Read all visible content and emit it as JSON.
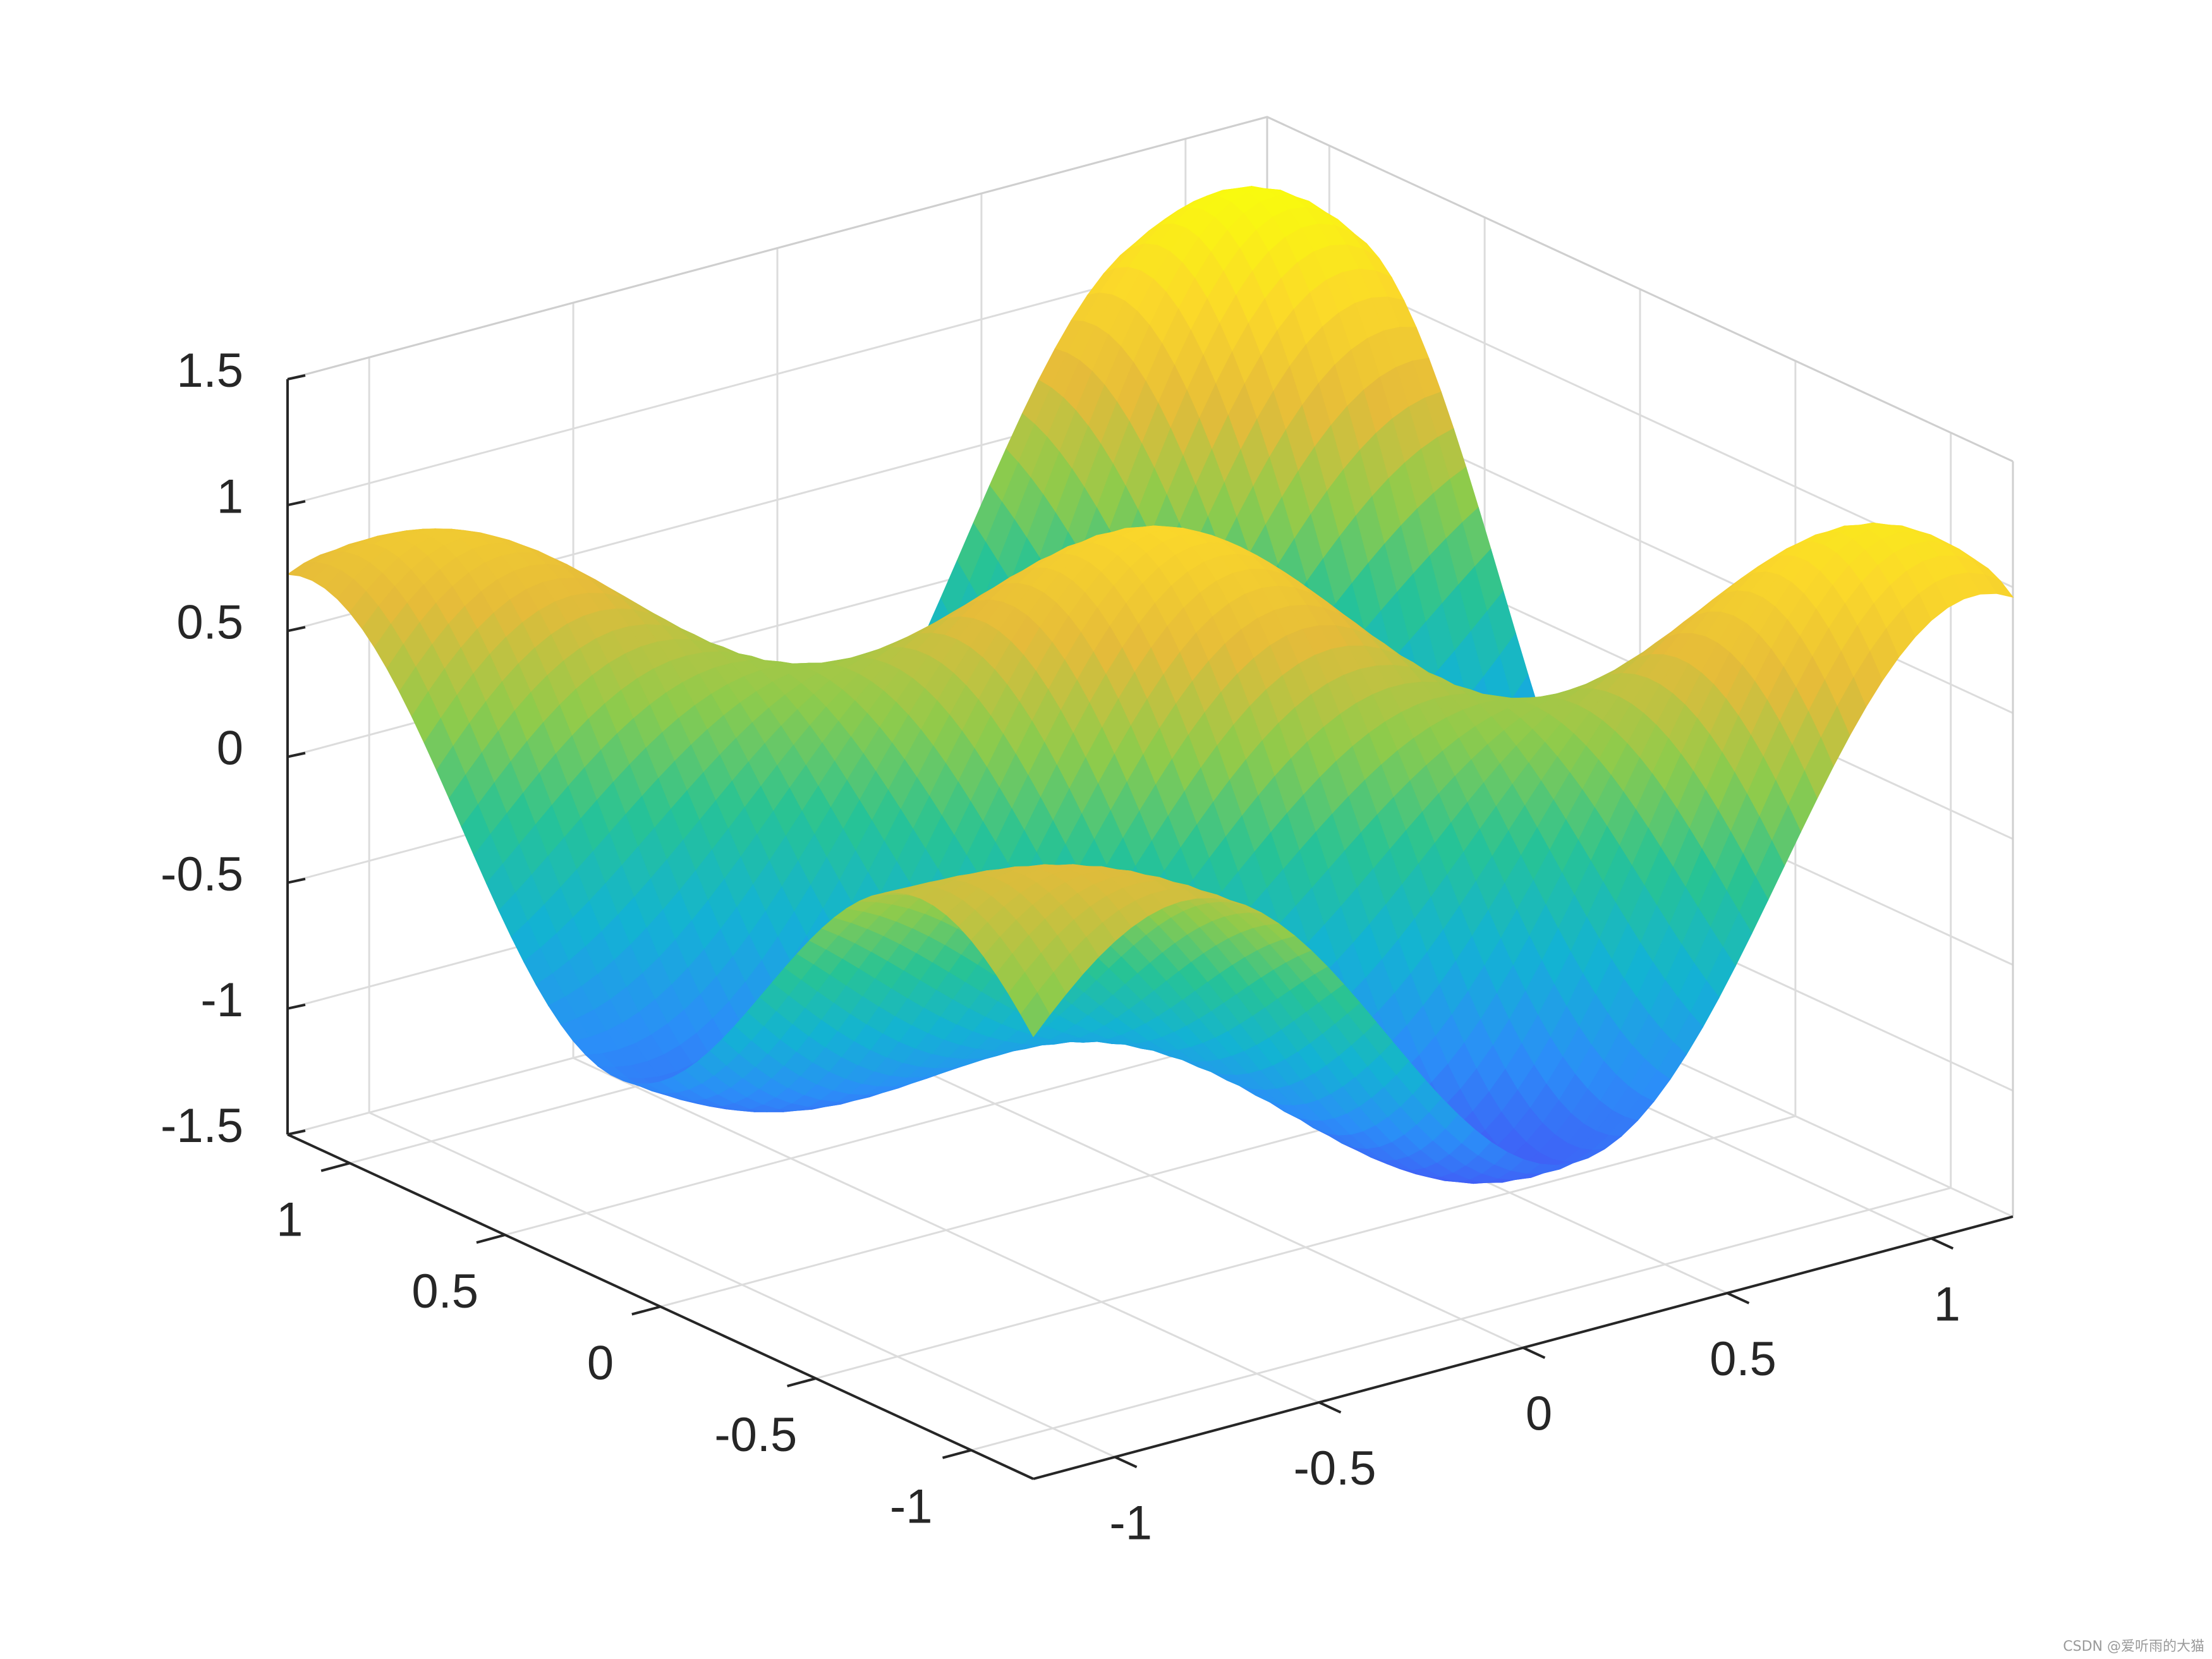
{
  "chart_data": {
    "type": "surface3d",
    "title": "",
    "xlabel": "",
    "ylabel": "",
    "zlabel": "",
    "x_range": [
      -1.2,
      1.2
    ],
    "y_range": [
      -1.2,
      1.2
    ],
    "z_range": [
      -1.5,
      1.5
    ],
    "x_ticks": [
      {
        "value": -1,
        "label": "-1"
      },
      {
        "value": -0.5,
        "label": "-0.5"
      },
      {
        "value": 0,
        "label": "0"
      },
      {
        "value": 0.5,
        "label": "0.5"
      },
      {
        "value": 1,
        "label": "1"
      }
    ],
    "y_ticks": [
      {
        "value": -1,
        "label": "-1"
      },
      {
        "value": -0.5,
        "label": "-0.5"
      },
      {
        "value": 0,
        "label": "0"
      },
      {
        "value": 0.5,
        "label": "0.5"
      },
      {
        "value": 1,
        "label": "1"
      }
    ],
    "z_ticks": [
      {
        "value": -1.5,
        "label": "-1.5"
      },
      {
        "value": -1,
        "label": "-1"
      },
      {
        "value": -0.5,
        "label": "-0.5"
      },
      {
        "value": 0,
        "label": "0"
      },
      {
        "value": 0.5,
        "label": "0.5"
      },
      {
        "value": 1,
        "label": "1"
      },
      {
        "value": 1.5,
        "label": "1.5"
      }
    ],
    "grid": true,
    "colormap": "parula",
    "colormap_stops": [
      "#3e26a8",
      "#4358f6",
      "#2b8ef8",
      "#13b3d3",
      "#27c395",
      "#8fcb4b",
      "#e5bb3a",
      "#fbd82a",
      "#f9fb0e"
    ],
    "peaks": [
      {
        "x": -1,
        "y": 0,
        "z": 0.73
      },
      {
        "x": -1,
        "y": -1,
        "z": -0.02
      },
      {
        "x": 0,
        "y": 1,
        "z": 1.19
      },
      {
        "x": 0,
        "y": 0,
        "z": 1.04
      },
      {
        "x": 0,
        "y": -1,
        "z": 0.71
      },
      {
        "x": 1,
        "y": 1,
        "z": 1.36
      },
      {
        "x": 1,
        "y": 0,
        "z": 1.06
      },
      {
        "x": 1,
        "y": -1,
        "z": 0.71
      },
      {
        "x": 0.5,
        "y": -0.5,
        "z": 1.07
      }
    ]
  },
  "watermark": "CSDN @爱听雨的大猫"
}
